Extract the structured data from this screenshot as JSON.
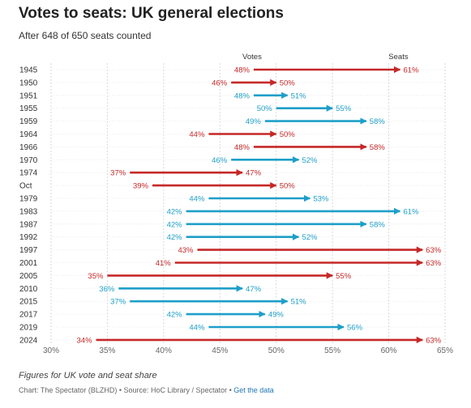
{
  "header": {
    "title": "Votes to seats: UK general elections",
    "subtitle": "After 648 of 650 seats counted"
  },
  "footer": {
    "note": "Figures for UK vote and seat share",
    "credit": "Chart: The Spectator (BLZHD) • Source: HoC Library / Spectator • ",
    "link": "Get the data"
  },
  "colors": {
    "red": "#c62828",
    "blue": "#1e9fc9",
    "grid": "#d9d9d9"
  },
  "chart_data": {
    "type": "arrow",
    "xlim": [
      30,
      65
    ],
    "x_ticks": [
      "30%",
      "35%",
      "40%",
      "45%",
      "50%",
      "55%",
      "60%",
      "65%"
    ],
    "x_tick_values": [
      30,
      35,
      40,
      45,
      50,
      55,
      60,
      65
    ],
    "legend": {
      "start_label": "Votes",
      "end_label": "Seats"
    },
    "rows": [
      {
        "label": "1945",
        "votes": 48,
        "seats": 61,
        "party": "red"
      },
      {
        "label": "1950",
        "votes": 46,
        "seats": 50,
        "party": "red"
      },
      {
        "label": "1951",
        "votes": 48,
        "seats": 51,
        "party": "blue"
      },
      {
        "label": "1955",
        "votes": 50,
        "seats": 55,
        "party": "blue"
      },
      {
        "label": "1959",
        "votes": 49,
        "seats": 58,
        "party": "blue"
      },
      {
        "label": "1964",
        "votes": 44,
        "seats": 50,
        "party": "red"
      },
      {
        "label": "1966",
        "votes": 48,
        "seats": 58,
        "party": "red"
      },
      {
        "label": "1970",
        "votes": 46,
        "seats": 52,
        "party": "blue"
      },
      {
        "label": "1974",
        "votes": 37,
        "seats": 47,
        "party": "red"
      },
      {
        "label": "Oct",
        "votes": 39,
        "seats": 50,
        "party": "red"
      },
      {
        "label": "1979",
        "votes": 44,
        "seats": 53,
        "party": "blue"
      },
      {
        "label": "1983",
        "votes": 42,
        "seats": 61,
        "party": "blue"
      },
      {
        "label": "1987",
        "votes": 42,
        "seats": 58,
        "party": "blue"
      },
      {
        "label": "1992",
        "votes": 42,
        "seats": 52,
        "party": "blue"
      },
      {
        "label": "1997",
        "votes": 43,
        "seats": 63,
        "party": "red"
      },
      {
        "label": "2001",
        "votes": 41,
        "seats": 63,
        "party": "red"
      },
      {
        "label": "2005",
        "votes": 35,
        "seats": 55,
        "party": "red"
      },
      {
        "label": "2010",
        "votes": 36,
        "seats": 47,
        "party": "blue"
      },
      {
        "label": "2015",
        "votes": 37,
        "seats": 51,
        "party": "blue"
      },
      {
        "label": "2017",
        "votes": 42,
        "seats": 49,
        "party": "blue"
      },
      {
        "label": "2019",
        "votes": 44,
        "seats": 56,
        "party": "blue"
      },
      {
        "label": "2024",
        "votes": 34,
        "seats": 63,
        "party": "red"
      }
    ]
  }
}
